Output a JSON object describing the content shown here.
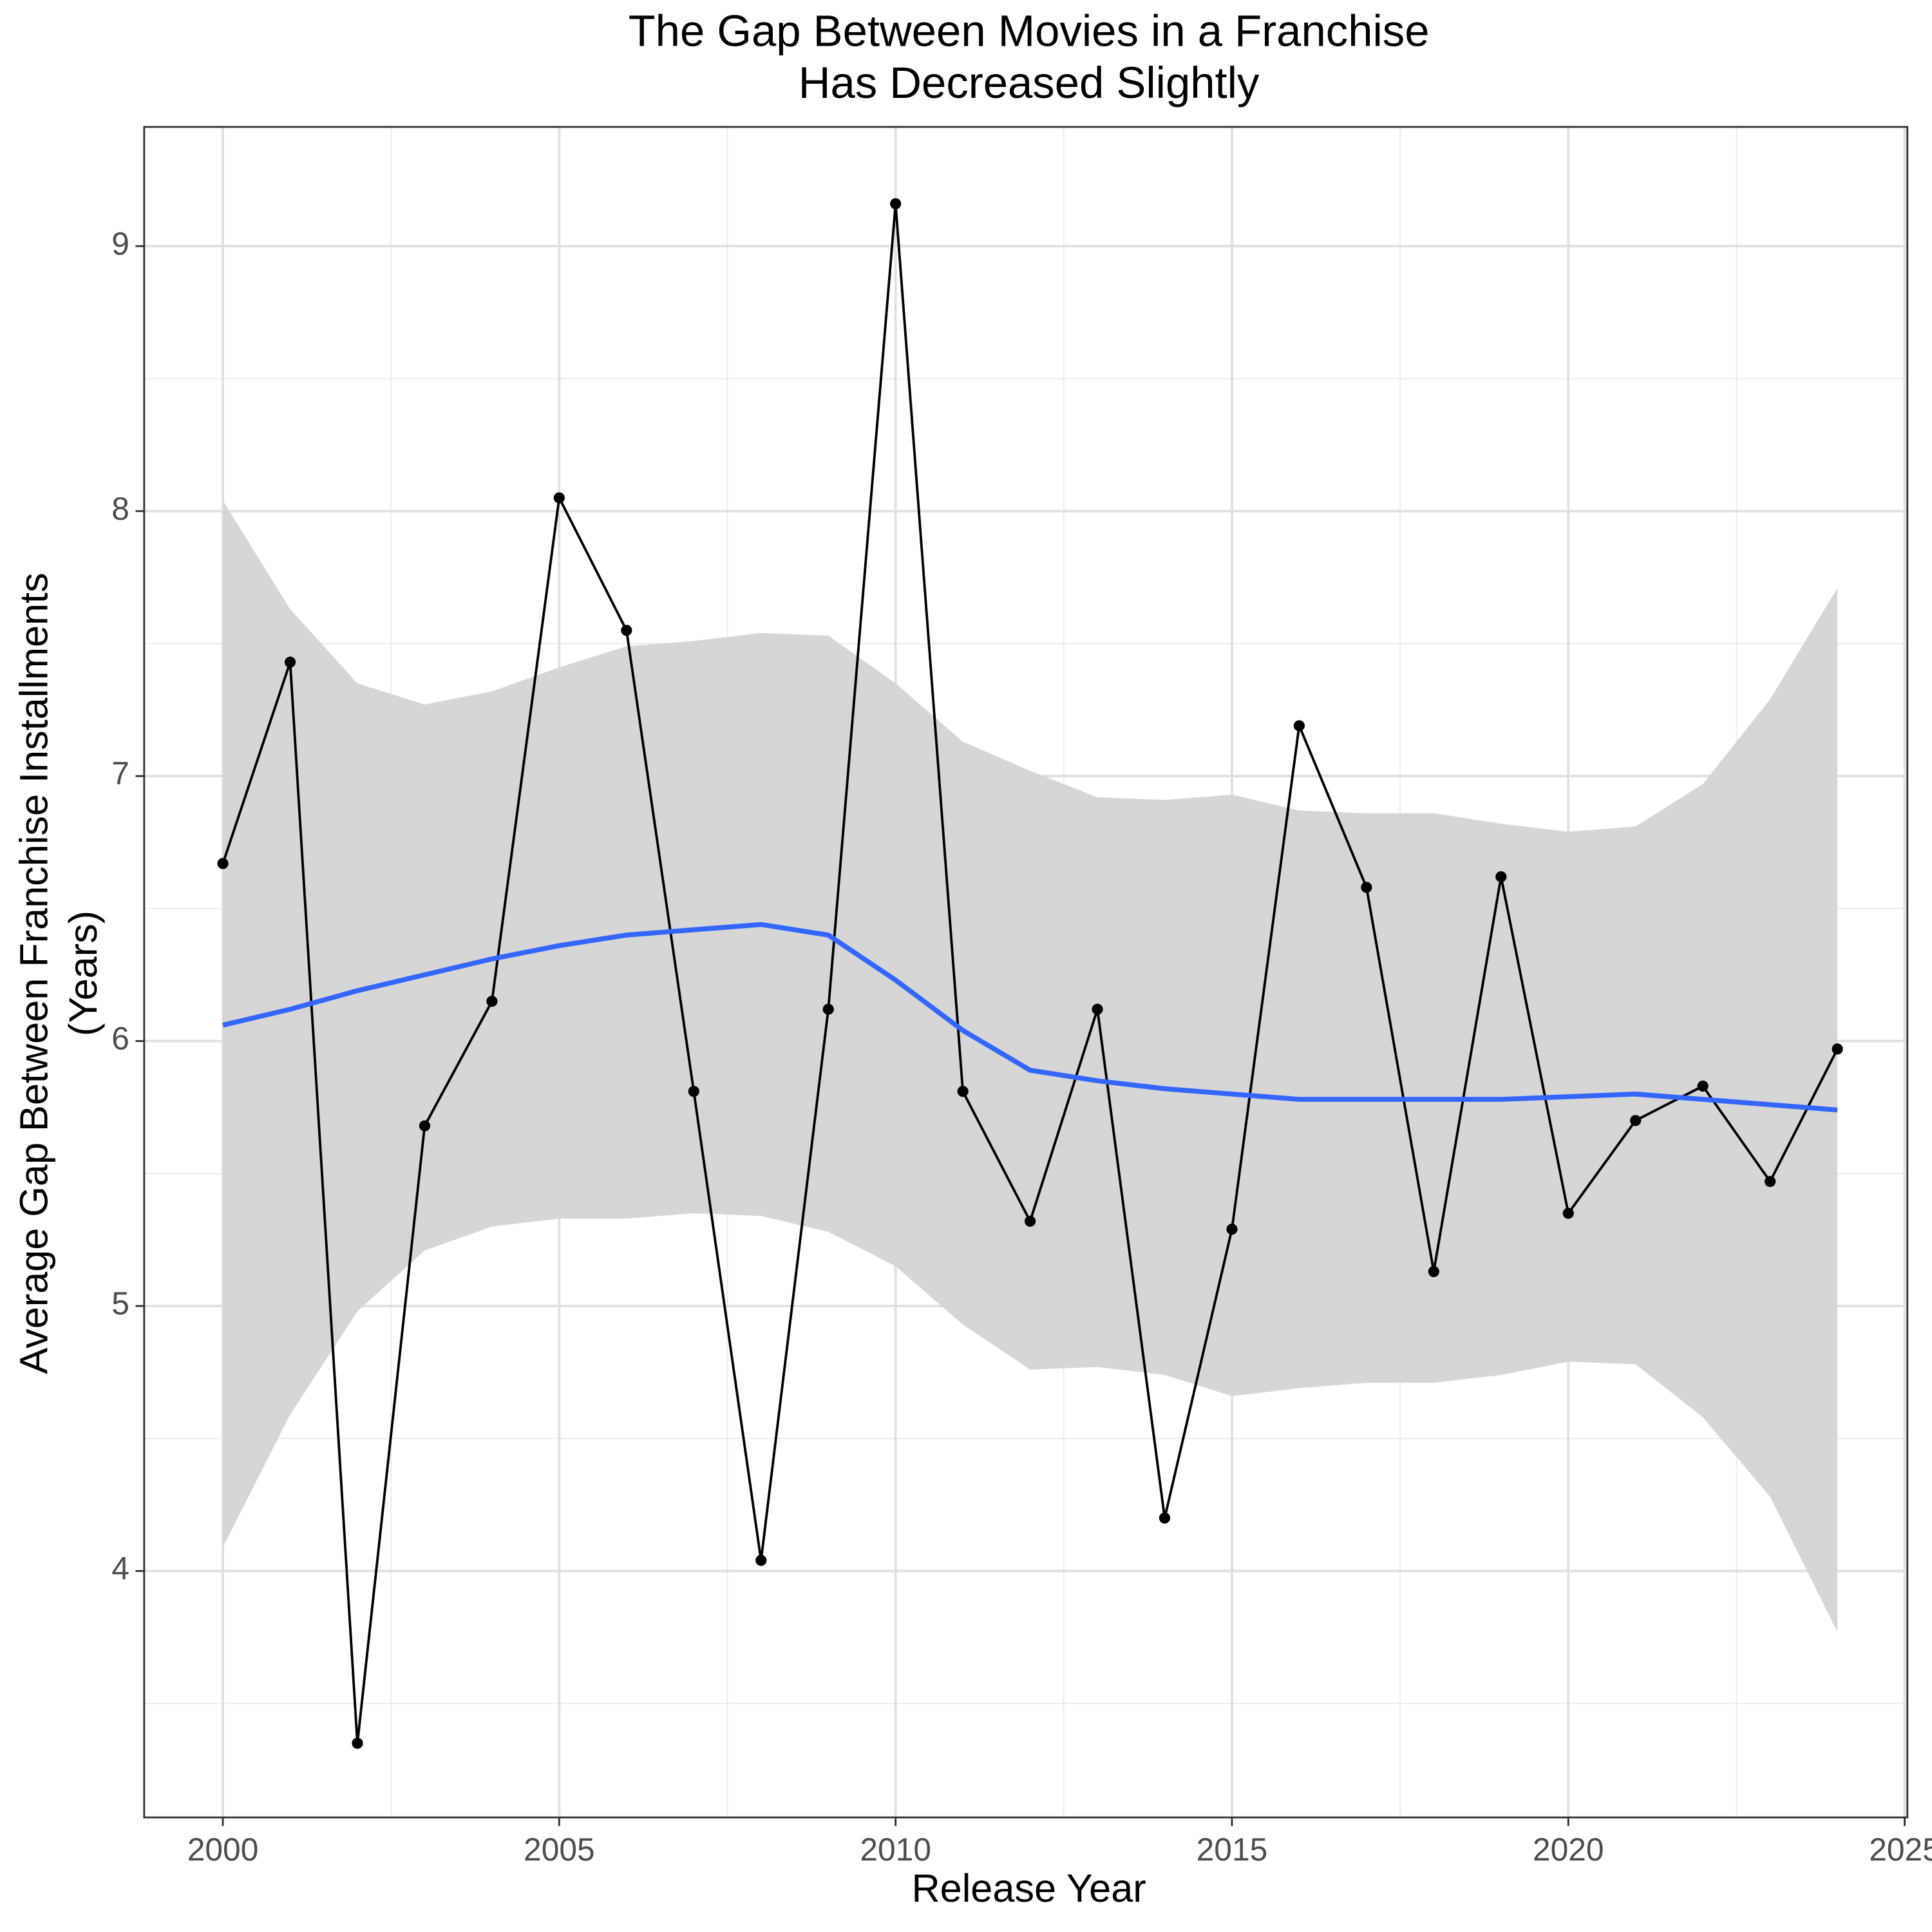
{
  "chart_data": {
    "type": "line",
    "title": [
      "The Gap Between Movies in a Franchise",
      "Has Decreased Slightly"
    ],
    "x_label": "Release Year",
    "y_label": [
      "Average Gap Between Franchise Installments",
      "(Years)"
    ],
    "x": [
      2000,
      2001,
      2002,
      2003,
      2004,
      2005,
      2006,
      2007,
      2008,
      2009,
      2010,
      2011,
      2012,
      2013,
      2014,
      2015,
      2016,
      2017,
      2018,
      2019,
      2020,
      2021,
      2022,
      2023,
      2024
    ],
    "values": [
      6.67,
      7.43,
      3.35,
      5.68,
      6.15,
      8.05,
      7.55,
      5.81,
      4.04,
      6.12,
      9.16,
      5.81,
      5.32,
      6.12,
      4.2,
      5.29,
      7.19,
      6.58,
      5.13,
      6.62,
      5.35,
      5.7,
      5.83,
      5.47,
      5.97
    ],
    "color": "#000000",
    "fit": [
      6.06,
      6.12,
      6.19,
      6.25,
      6.31,
      6.36,
      6.4,
      6.42,
      6.44,
      6.4,
      6.23,
      6.04,
      5.89,
      5.85,
      5.82,
      5.8,
      5.78,
      5.78,
      5.78,
      5.78,
      5.79,
      5.8,
      5.78,
      5.76,
      5.74
    ],
    "fit_color": "#3366ff",
    "fit_upper": [
      8.04,
      7.63,
      7.35,
      7.27,
      7.32,
      7.41,
      7.49,
      7.51,
      7.54,
      7.53,
      7.35,
      7.13,
      7.02,
      6.92,
      6.91,
      6.93,
      6.87,
      6.86,
      6.86,
      6.82,
      6.79,
      6.81,
      6.97,
      7.29,
      7.71
    ],
    "fit_lower": [
      4.09,
      4.59,
      4.98,
      5.21,
      5.3,
      5.33,
      5.33,
      5.35,
      5.34,
      5.28,
      5.15,
      4.93,
      4.76,
      4.77,
      4.74,
      4.66,
      4.69,
      4.71,
      4.71,
      4.74,
      4.79,
      4.78,
      4.58,
      4.28,
      3.77
    ],
    "band_color": "#d6d6d6",
    "xlim": [
      1998.83,
      2025.04
    ],
    "ylim": [
      3.07,
      9.45
    ],
    "xticks": [
      2000,
      2005,
      2010,
      2015,
      2020,
      2025
    ],
    "x_minor_ticks": [
      2002.5,
      2007.5,
      2012.5,
      2017.5,
      2022.5
    ],
    "yticks": [
      4,
      5,
      6,
      7,
      8,
      9
    ],
    "y_minor_ticks": [
      3.5,
      4.5,
      5.5,
      6.5,
      7.5,
      8.5
    ],
    "grid": true
  }
}
